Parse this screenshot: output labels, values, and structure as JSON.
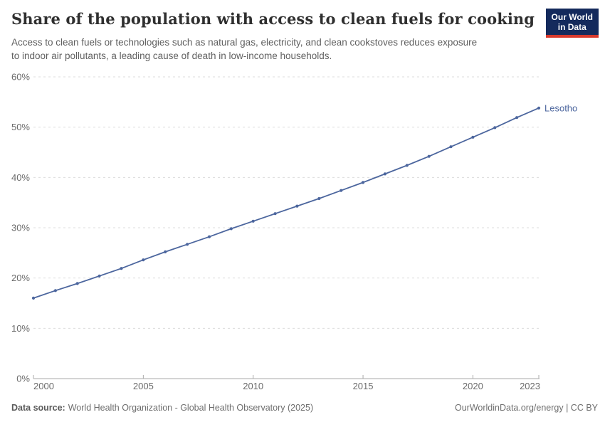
{
  "header": {
    "title": "Share of the population with access to clean fuels for cooking",
    "subtitle": "Access to clean fuels or technologies such as natural gas, electricity, and clean cookstoves reduces exposure\nto indoor air pollutants, a leading cause of death in low-income households.",
    "logo": {
      "line1": "Our World",
      "line2": "in Data",
      "bg_color": "#142a5c",
      "bar_color": "#d8392c"
    }
  },
  "chart_data": {
    "type": "line",
    "title": "Share of the population with access to clean fuels for cooking",
    "xlabel": "",
    "ylabel": "",
    "xlim": [
      2000,
      2023
    ],
    "ylim": [
      0,
      60
    ],
    "grid": "horizontal-dashed",
    "legend_position": "end-of-line-label",
    "x_ticks": [
      2000,
      2005,
      2010,
      2015,
      2020,
      2023
    ],
    "y_ticks": [
      0,
      10,
      20,
      30,
      40,
      50,
      60
    ],
    "y_tick_labels": [
      "0%",
      "10%",
      "20%",
      "30%",
      "40%",
      "50%",
      "60%"
    ],
    "series": [
      {
        "name": "Lesotho",
        "color": "#4c669e",
        "x": [
          2000,
          2001,
          2002,
          2003,
          2004,
          2005,
          2006,
          2007,
          2008,
          2009,
          2010,
          2011,
          2012,
          2013,
          2014,
          2015,
          2016,
          2017,
          2018,
          2019,
          2020,
          2021,
          2022,
          2023
        ],
        "values": [
          16.0,
          17.5,
          18.9,
          20.4,
          21.9,
          23.6,
          25.2,
          26.7,
          28.2,
          29.8,
          31.3,
          32.8,
          34.3,
          35.8,
          37.4,
          39.0,
          40.7,
          42.4,
          44.2,
          46.1,
          48.0,
          49.9,
          51.9,
          53.8
        ]
      }
    ]
  },
  "footer": {
    "datasource_label": "Data source:",
    "datasource_text": "World Health Organization - Global Health Observatory (2025)",
    "credit": "OurWorldinData.org/energy | CC BY"
  }
}
